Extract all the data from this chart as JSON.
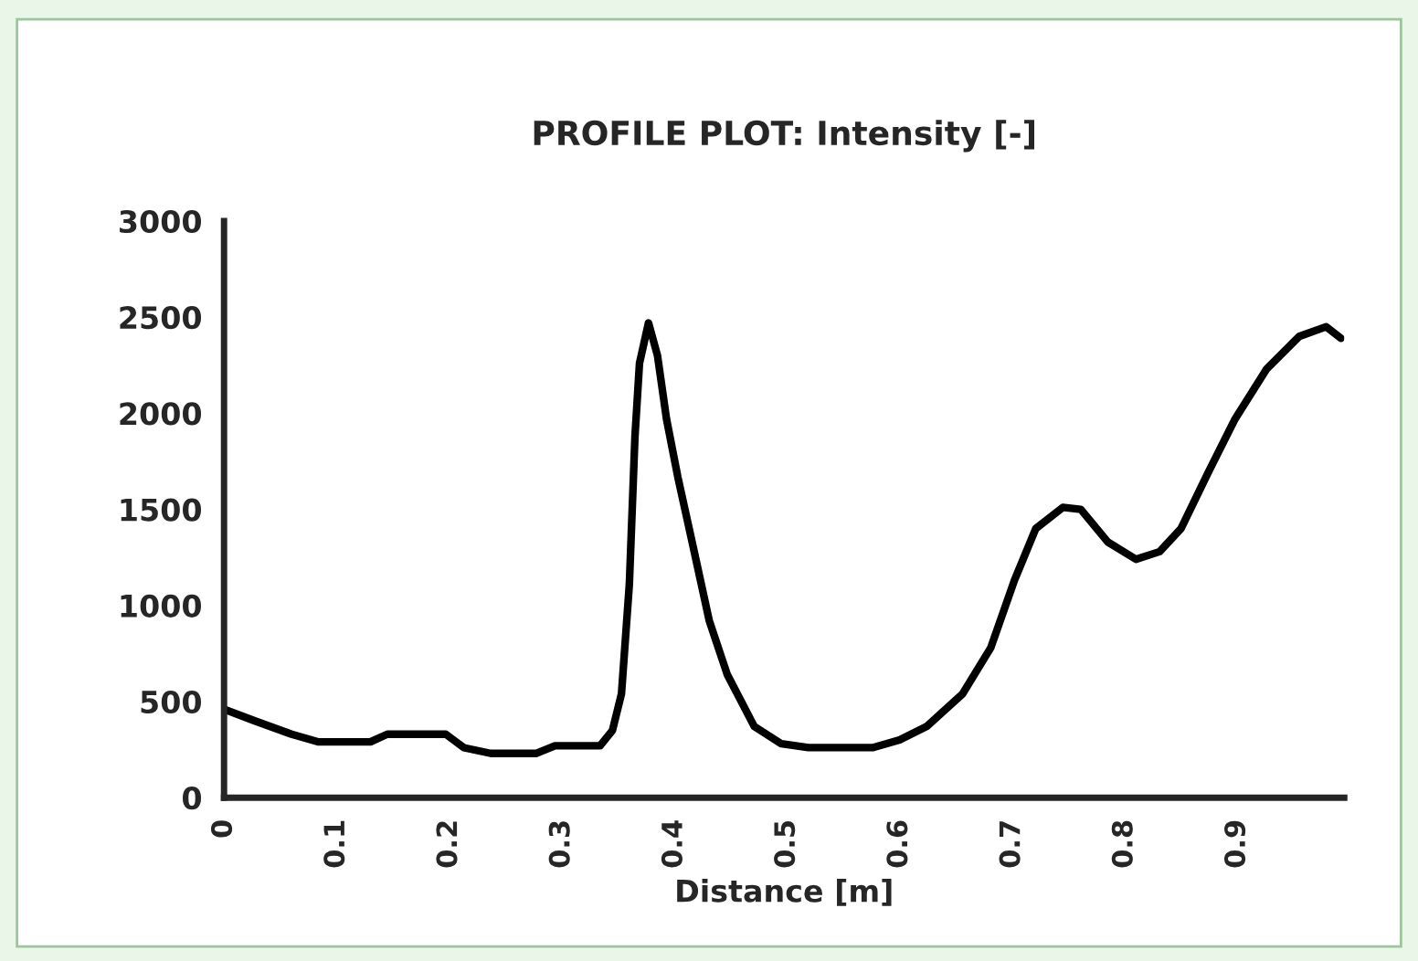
{
  "chart_data": {
    "type": "line",
    "title": "PROFILE PLOT: Intensity [-]",
    "xlabel": "Distance [m]",
    "x": [
      0,
      0.027,
      0.06,
      0.084,
      0.13,
      0.145,
      0.197,
      0.213,
      0.237,
      0.277,
      0.294,
      0.334,
      0.345,
      0.353,
      0.36,
      0.365,
      0.369,
      0.377,
      0.385,
      0.393,
      0.403,
      0.415,
      0.431,
      0.447,
      0.471,
      0.495,
      0.519,
      0.576,
      0.6,
      0.624,
      0.656,
      0.681,
      0.702,
      0.721,
      0.745,
      0.761,
      0.785,
      0.81,
      0.831,
      0.85,
      0.874,
      0.898,
      0.926,
      0.955,
      0.979,
      0.992
    ],
    "series": [
      {
        "color": "#000000",
        "values": [
          460,
          400,
          330,
          290,
          290,
          330,
          330,
          260,
          230,
          230,
          270,
          270,
          350,
          540,
          1110,
          1880,
          2260,
          2470,
          2300,
          1970,
          1670,
          1350,
          920,
          640,
          370,
          280,
          260,
          260,
          300,
          370,
          540,
          780,
          1130,
          1400,
          1510,
          1500,
          1330,
          1240,
          1280,
          1400,
          1690,
          1970,
          2230,
          2400,
          2450,
          2390
        ]
      }
    ],
    "xlim": [
      0,
      0.995
    ],
    "ylim": [
      0,
      3000
    ],
    "xticks": [
      0,
      0.1,
      0.2,
      0.3,
      0.4,
      0.5,
      0.6,
      0.7,
      0.8,
      0.9
    ],
    "yticks": [
      0,
      500,
      1000,
      1500,
      2000,
      2500,
      3000
    ],
    "grid": false,
    "legend": false,
    "marker": "none",
    "line_style": "solid"
  }
}
